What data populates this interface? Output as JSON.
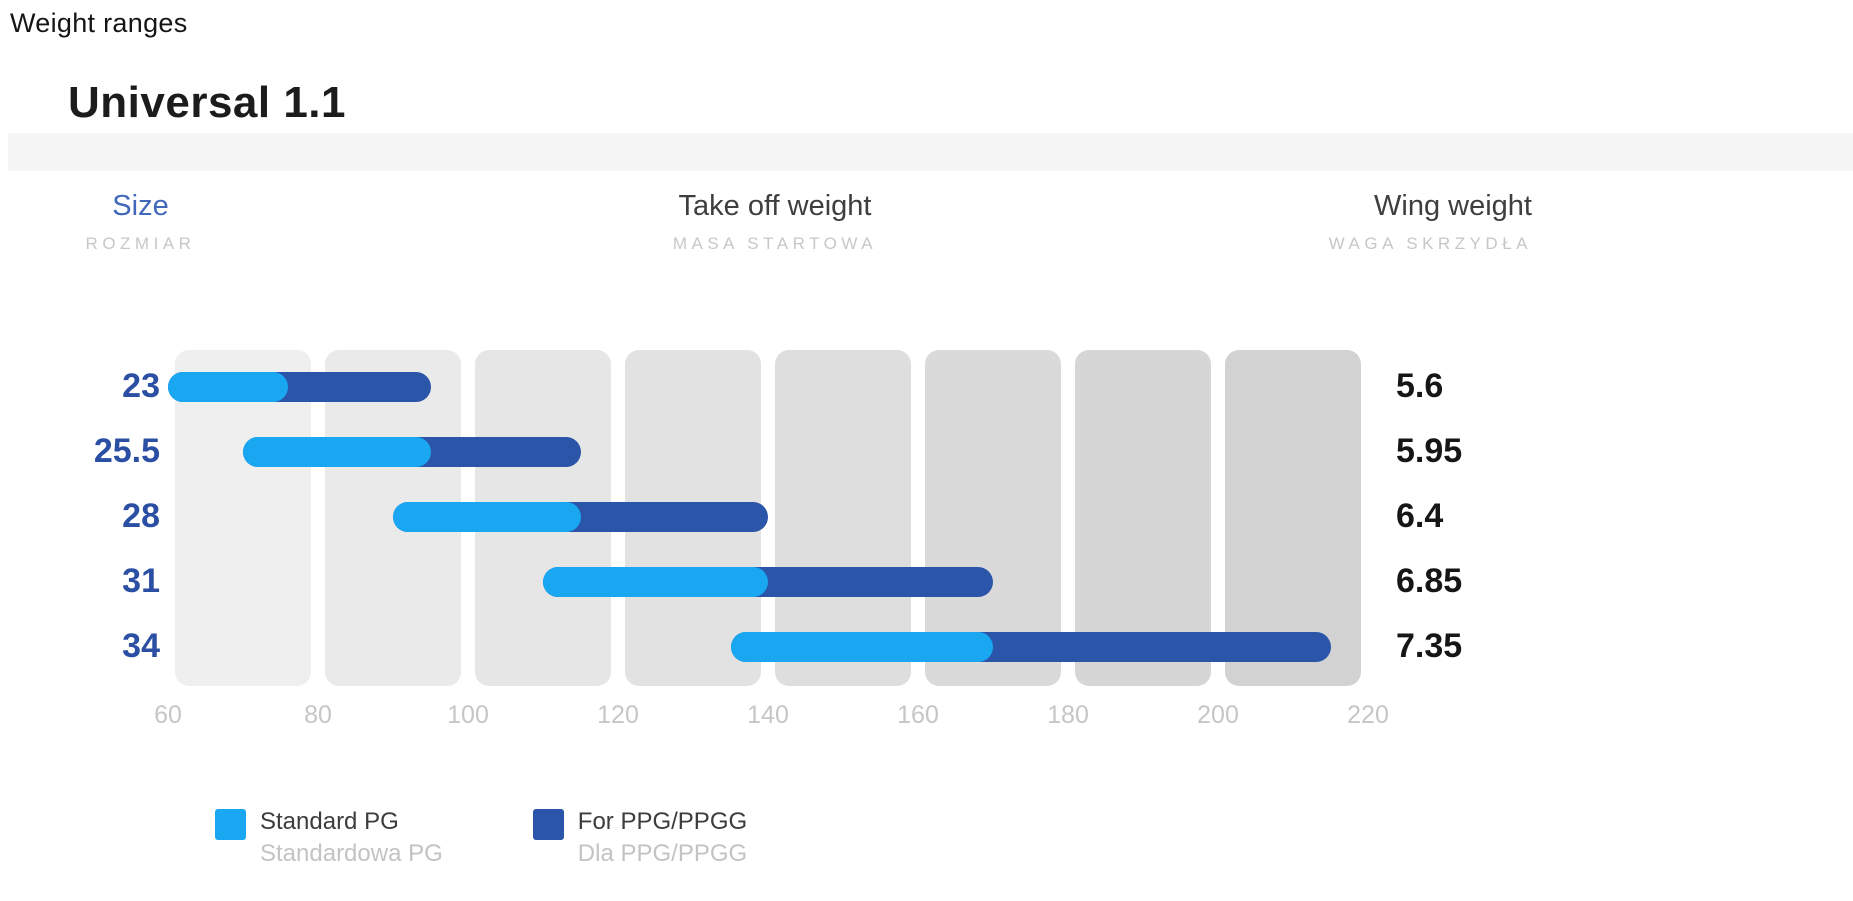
{
  "page": {
    "title": "Weight ranges"
  },
  "product": {
    "title": "Universal 1.1"
  },
  "headers": {
    "size": {
      "label": "Size",
      "sublabel": "ROZMIAR"
    },
    "takeoff": {
      "label": "Take off weight",
      "sublabel": "MASA STARTOWA"
    },
    "wing": {
      "label": "Wing weight",
      "sublabel": "WAGA SKRZYDŁA"
    }
  },
  "legend": [
    {
      "label": "Standard PG",
      "sublabel": "Standardowa PG",
      "color": "#18a7f0"
    },
    {
      "label": "For PPG/PPGG",
      "sublabel": "Dla PPG/PPGG",
      "color": "#2b55a8"
    }
  ],
  "colors": {
    "standard_pg": "#18a7f0",
    "ppg_extension": "#2b55a8",
    "size_label": "#2b4fa3",
    "size_header": "#4168ba",
    "header_text": "#3e3e3e",
    "subheader_text": "#c7c7c7",
    "axis_tick": "#c6c6c6",
    "highlight_band": "#f5f5f5",
    "grid_columns": [
      "#efefef",
      "#eaeaea",
      "#e6e6e6",
      "#e2e2e2",
      "#dedede",
      "#dadada",
      "#d6d6d6",
      "#d2d2d2"
    ]
  },
  "chart_data": {
    "type": "bar",
    "variant": "range",
    "orientation": "horizontal",
    "title": "Weight ranges",
    "subtitle": "Universal 1.1",
    "xlabel": "Take off weight (kg)",
    "xlim": [
      60,
      220
    ],
    "xticks": [
      60,
      80,
      100,
      120,
      140,
      160,
      180,
      200,
      220
    ],
    "grid": "column-bands",
    "legend_position": "bottom",
    "categories": [
      "23",
      "25.5",
      "28",
      "31",
      "34"
    ],
    "series": [
      {
        "name": "Standard PG",
        "ranges": [
          [
            60,
            76
          ],
          [
            70,
            95
          ],
          [
            90,
            115
          ],
          [
            110,
            140
          ],
          [
            135,
            170
          ]
        ]
      },
      {
        "name": "For PPG/PPGG",
        "ranges": [
          [
            76,
            95
          ],
          [
            95,
            115
          ],
          [
            115,
            140
          ],
          [
            140,
            170
          ],
          [
            170,
            215
          ]
        ]
      }
    ],
    "rows": [
      {
        "size": "23",
        "pg": [
          60,
          76
        ],
        "ppg": [
          60,
          95
        ],
        "wing_weight": "5.6"
      },
      {
        "size": "25.5",
        "pg": [
          70,
          95
        ],
        "ppg": [
          70,
          115
        ],
        "wing_weight": "5.95"
      },
      {
        "size": "28",
        "pg": [
          90,
          115
        ],
        "ppg": [
          90,
          140
        ],
        "wing_weight": "6.4"
      },
      {
        "size": "31",
        "pg": [
          110,
          140
        ],
        "ppg": [
          110,
          170
        ],
        "wing_weight": "6.85"
      },
      {
        "size": "34",
        "pg": [
          135,
          170
        ],
        "ppg": [
          135,
          215
        ],
        "wing_weight": "7.35"
      }
    ],
    "wing_weight_label": "Wing weight [kg]",
    "wing_weights": [
      5.6,
      5.95,
      6.4,
      6.85,
      7.35
    ]
  }
}
